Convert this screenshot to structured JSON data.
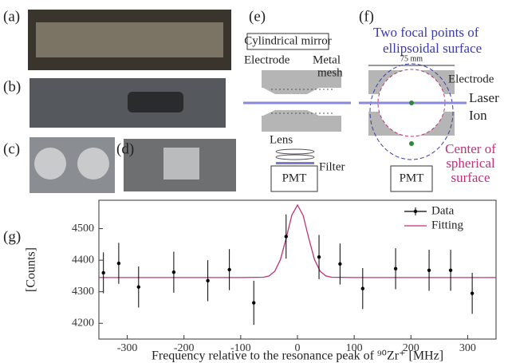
{
  "panels": {
    "a": "(a)",
    "b": "(b)",
    "c": "(c)",
    "d": "(d)",
    "e": "(e)",
    "f": "(f)",
    "g": "(g)",
    "e_texts": {
      "mirror": "Cylindrical mirror",
      "electrode": "Electrode",
      "metal": "Metal",
      "mesh": "mesh",
      "lens": "Lens",
      "filter": "Filter",
      "pmt": "PMT"
    },
    "f_texts": {
      "focal1": "Two focal points of",
      "focal2": "ellipsoidal surface",
      "scale": "75 mm",
      "electrode": "Electrode",
      "laser": "Laser",
      "ion": "Ion",
      "center1": "Center of",
      "center2": "spherical",
      "center3": "surface",
      "pmt": "PMT"
    }
  },
  "chart_data": {
    "type": "scatter",
    "xlabel": "Frequency relative to the resonance peak of ⁹⁰Zr⁺ [MHz]",
    "ylabel": "[Counts]",
    "xlim": [
      -350,
      350
    ],
    "ylim": [
      4150,
      4590
    ],
    "xticks": [
      -300,
      -200,
      -100,
      0,
      100,
      200,
      300
    ],
    "yticks": [
      4200,
      4300,
      4400,
      4500
    ],
    "legend": "upper right",
    "series": [
      {
        "name": "Data",
        "color": "#000000",
        "x": [
          -342,
          -315,
          -280,
          -218,
          -158,
          -120,
          -77,
          -20,
          38,
          75,
          115,
          173,
          232,
          270,
          308
        ],
        "values": [
          4360,
          4390,
          4315,
          4362,
          4335,
          4370,
          4265,
          4475,
          4410,
          4388,
          4310,
          4373,
          4368,
          4368,
          4295
        ],
        "errors": [
          65,
          65,
          65,
          65,
          65,
          65,
          70,
          70,
          70,
          65,
          65,
          65,
          65,
          65,
          65
        ]
      },
      {
        "name": "Fitting",
        "color": "#c0307a",
        "x": [
          -350,
          -100,
          -60,
          -50,
          -40,
          -30,
          -20,
          -10,
          0,
          10,
          20,
          30,
          40,
          50,
          60,
          100,
          350
        ],
        "values": [
          4345,
          4345,
          4346,
          4350,
          4365,
          4402,
          4469,
          4542,
          4575,
          4542,
          4469,
          4402,
          4365,
          4350,
          4346,
          4345,
          4345
        ]
      }
    ]
  }
}
